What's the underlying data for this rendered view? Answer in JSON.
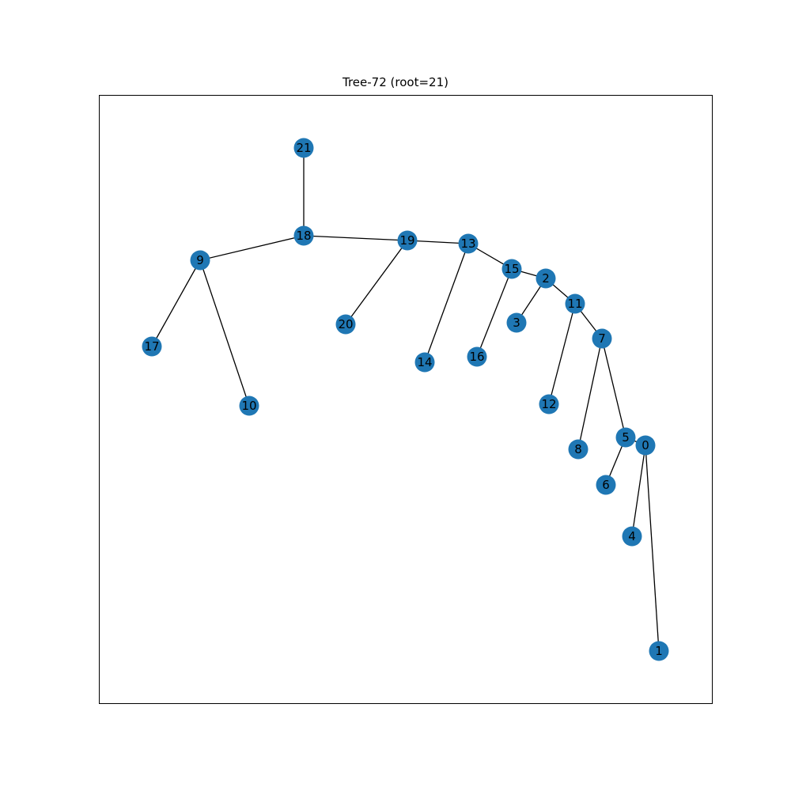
{
  "title": "Tree-72 (root=21)",
  "style": {
    "node_color": "#1f77b4",
    "edge_color": "#000000",
    "frame_color": "#000000"
  },
  "tree": {
    "root": "21",
    "nodes": [
      "0",
      "1",
      "2",
      "3",
      "4",
      "5",
      "6",
      "7",
      "8",
      "9",
      "10",
      "11",
      "12",
      "13",
      "14",
      "15",
      "16",
      "17",
      "18",
      "19",
      "20",
      "21"
    ],
    "edges": [
      [
        "21",
        "18"
      ],
      [
        "18",
        "9"
      ],
      [
        "18",
        "19"
      ],
      [
        "9",
        "17"
      ],
      [
        "9",
        "10"
      ],
      [
        "19",
        "20"
      ],
      [
        "19",
        "13"
      ],
      [
        "13",
        "14"
      ],
      [
        "13",
        "15"
      ],
      [
        "15",
        "16"
      ],
      [
        "15",
        "2"
      ],
      [
        "2",
        "3"
      ],
      [
        "2",
        "11"
      ],
      [
        "11",
        "12"
      ],
      [
        "11",
        "7"
      ],
      [
        "7",
        "8"
      ],
      [
        "7",
        "5"
      ],
      [
        "5",
        "6"
      ],
      [
        "5",
        "0"
      ],
      [
        "0",
        "4"
      ],
      [
        "0",
        "1"
      ]
    ]
  }
}
